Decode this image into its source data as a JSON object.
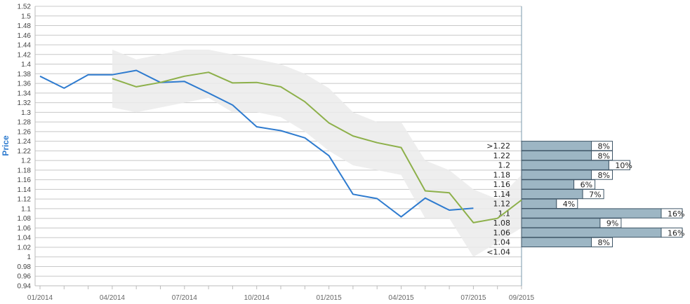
{
  "chart_data": {
    "type": "line",
    "ylabel": "Price",
    "xlabel": "",
    "ylim": [
      0.94,
      1.52
    ],
    "yticks": [
      "0.94",
      "0.96",
      "0.98",
      "1",
      "1.02",
      "1.04",
      "1.06",
      "1.08",
      "1.1",
      "1.12",
      "1.14",
      "1.16",
      "1.18",
      "1.2",
      "1.22",
      "1.24",
      "1.26",
      "1.28",
      "1.3",
      "1.32",
      "1.34",
      "1.36",
      "1.38",
      "1.4",
      "1.42",
      "1.44",
      "1.46",
      "1.48",
      "1.5",
      "1.52"
    ],
    "xlim": [
      "2014-01",
      "2015-09"
    ],
    "x_tick_labels": [
      "01/2014",
      "04/2014",
      "07/2014",
      "10/2014",
      "01/2015",
      "04/2015",
      "07/2015",
      "09/2015"
    ],
    "colors": {
      "actual": "#2E7BCF",
      "forecast": "#8DB04A",
      "band": "#EBEBEB",
      "histogram_bar": "#9DB6C4",
      "grid": "#C8C8C8"
    },
    "series": [
      {
        "key": "actual",
        "x": [
          "2014-01",
          "2014-02",
          "2014-03",
          "2014-04",
          "2014-05",
          "2014-06",
          "2014-07",
          "2014-08",
          "2014-09",
          "2014-10",
          "2014-11",
          "2014-12",
          "2015-01",
          "2015-02",
          "2015-03",
          "2015-04",
          "2015-05",
          "2015-06",
          "2015-07"
        ],
        "values": [
          1.375,
          1.35,
          1.378,
          1.378,
          1.387,
          1.362,
          1.364,
          1.34,
          1.315,
          1.27,
          1.262,
          1.247,
          1.21,
          1.13,
          1.121,
          1.083,
          1.122,
          1.097,
          1.101
        ]
      },
      {
        "key": "forecast",
        "x": [
          "2014-04",
          "2014-05",
          "2014-06",
          "2014-07",
          "2014-08",
          "2014-09",
          "2014-10",
          "2014-11",
          "2014-12",
          "2015-01",
          "2015-02",
          "2015-03",
          "2015-04",
          "2015-05",
          "2015-06",
          "2015-07",
          "2015-08",
          "2015-09"
        ],
        "values": [
          1.37,
          1.353,
          1.362,
          1.375,
          1.383,
          1.361,
          1.362,
          1.353,
          1.322,
          1.278,
          1.251,
          1.237,
          1.227,
          1.137,
          1.133,
          1.071,
          1.08,
          1.118
        ],
        "band_upper": [
          1.43,
          1.41,
          1.42,
          1.43,
          1.43,
          1.42,
          1.41,
          1.4,
          1.38,
          1.35,
          1.3,
          1.28,
          1.28,
          1.2,
          1.18,
          1.14,
          1.12,
          1.17
        ],
        "band_lower": [
          1.31,
          1.3,
          1.31,
          1.32,
          1.33,
          1.3,
          1.3,
          1.29,
          1.26,
          1.22,
          1.19,
          1.18,
          1.17,
          1.08,
          1.08,
          1.0,
          1.03,
          1.06
        ]
      }
    ],
    "histogram": {
      "labels": [
        ">1.22",
        "1.22",
        "1.2",
        "1.18",
        "1.16",
        "1.14",
        "1.12",
        "1.1",
        "1.08",
        "1.06",
        "1.04",
        "<1.04"
      ],
      "centers": [
        1.23,
        1.21,
        1.19,
        1.17,
        1.15,
        1.13,
        1.11,
        1.09,
        1.07,
        1.05,
        1.03,
        1.01
      ],
      "percents": [
        8,
        8,
        10,
        8,
        6,
        7,
        4,
        16,
        9,
        16,
        8,
        0
      ],
      "percent_labels": [
        "8%",
        "8%",
        "10%",
        "8%",
        "6%",
        "7%",
        "4%",
        "16%",
        "9%",
        "16%",
        "8%",
        ""
      ]
    }
  }
}
